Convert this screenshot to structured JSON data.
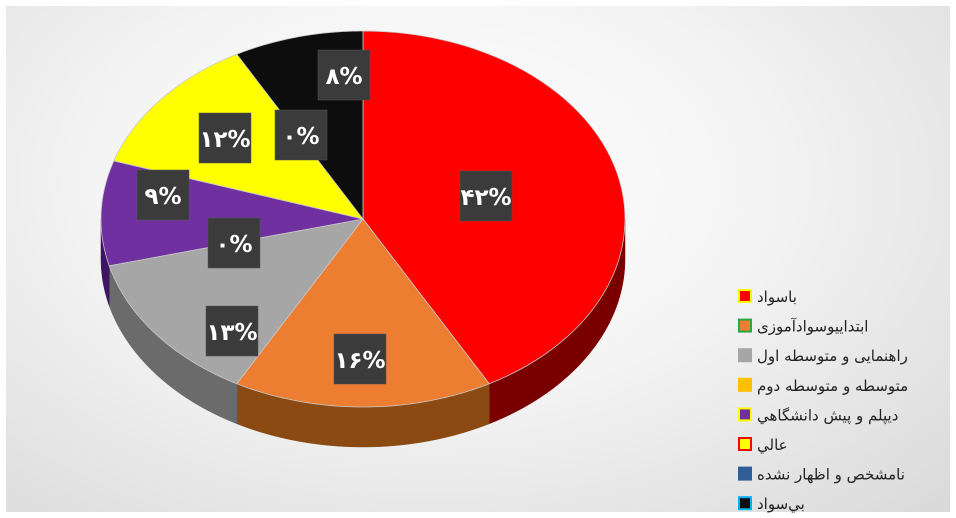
{
  "chart_data": {
    "type": "pie",
    "title": "",
    "categories": [
      "باسواد",
      "ابتداييوسوادآموزی",
      "راهنمایی و متوسطه اول",
      "متوسطه و متوسطه دوم",
      "ديپلم و پيش دانشگاهي",
      "عالي",
      "نامشخص و اظهار نشده",
      "بي‌سواد"
    ],
    "values": [
      42,
      16,
      13,
      0,
      9,
      12,
      0,
      8
    ],
    "value_labels": [
      "۴۲%",
      "۱۶%",
      "۱۳%",
      "۰%",
      "۹%",
      "۱۲%",
      "۰%",
      "۸%"
    ],
    "colors": [
      "#ff0000",
      "#ed7d31",
      "#a6a6a6",
      "#ffc000",
      "#7030a0",
      "#ffff00",
      "#2e5f98",
      "#0d0d0d"
    ],
    "side_colors": [
      "#7a0000",
      "#8a4a12",
      "#6b6b6b",
      "#8a6a00",
      "#3e1560",
      "#8a8a00",
      "#1a3558",
      "#000000"
    ],
    "legend_marker_borders": [
      "#ffff00",
      "#27a844",
      "#a6a6a6",
      "#ffc000",
      "#ffff00",
      "#ff0000",
      "#2e5f98",
      "#00b0f0"
    ],
    "legend_position": "right",
    "style": "3d"
  }
}
